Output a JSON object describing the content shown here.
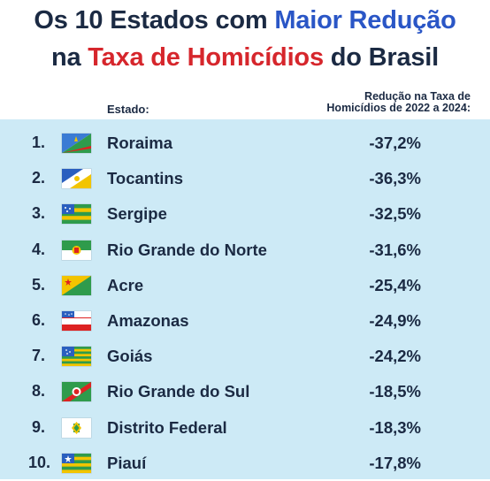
{
  "title": {
    "line1_a": "Os 10 Estados com ",
    "line1_b": "Maior Redução",
    "line2_a": "na ",
    "line2_b": "Taxa de Homicídios",
    "line2_c": " do Brasil"
  },
  "headers": {
    "estado": "Estado:",
    "reducao_line1": "Redução na Taxa de",
    "reducao_line2": "Homicídios de 2022 a 2024:"
  },
  "chart_data": {
    "type": "table",
    "columns": [
      "Estado:",
      "Redução na Taxa de Homicídios de 2022 a 2024:"
    ],
    "rows": [
      {
        "rank": "1.",
        "state": "Roraima",
        "value": "-37,2%",
        "flag": "roraima-flag-icon"
      },
      {
        "rank": "2.",
        "state": "Tocantins",
        "value": "-36,3%",
        "flag": "tocantins-flag-icon"
      },
      {
        "rank": "3.",
        "state": "Sergipe",
        "value": "-32,5%",
        "flag": "sergipe-flag-icon"
      },
      {
        "rank": "4.",
        "state": "Rio Grande do Norte",
        "value": "-31,6%",
        "flag": "rio-grande-do-norte-flag-icon"
      },
      {
        "rank": "5.",
        "state": "Acre",
        "value": "-25,4%",
        "flag": "acre-flag-icon"
      },
      {
        "rank": "6.",
        "state": "Amazonas",
        "value": "-24,9%",
        "flag": "amazonas-flag-icon"
      },
      {
        "rank": "7.",
        "state": "Goiás",
        "value": "-24,2%",
        "flag": "goias-flag-icon"
      },
      {
        "rank": "8.",
        "state": "Rio Grande do Sul",
        "value": "-18,5%",
        "flag": "rio-grande-do-sul-flag-icon"
      },
      {
        "rank": "9.",
        "state": "Distrito Federal",
        "value": "-18,3%",
        "flag": "distrito-federal-flag-icon"
      },
      {
        "rank": "10.",
        "state": "Piauí",
        "value": "-17,8%",
        "flag": "piaui-flag-icon"
      }
    ]
  },
  "colors": {
    "title_dark": "#1b2a43",
    "title_blue": "#2a56c6",
    "title_red": "#d6262c",
    "panel_bg": "#cdeaf6"
  }
}
